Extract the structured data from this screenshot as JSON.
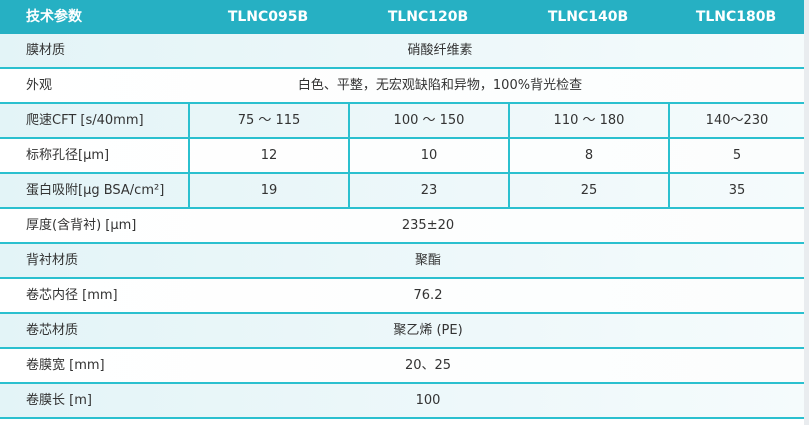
{
  "header": {
    "param": "技术参数",
    "models": [
      "TLNC095B",
      "TLNC120B",
      "TLNC140B",
      "TLNC180B"
    ]
  },
  "rows": [
    {
      "label": "膜材质",
      "value": "硝酸纤维素"
    },
    {
      "label": "外观",
      "value": "白色、平整，无宏观缺陷和异物，100%背光检查"
    },
    {
      "label": "爬速CFT [s/40mm]",
      "values": [
        "75 ～ 115",
        "100 ～ 150",
        "110 ～ 180",
        "140～230"
      ]
    },
    {
      "label": "标称孔径[μm]",
      "values": [
        "12",
        "10",
        "8",
        "5"
      ]
    },
    {
      "label": "蛋白吸附[μg BSA/cm²]",
      "values": [
        "19",
        "23",
        "25",
        "35"
      ]
    },
    {
      "label": "厚度(含背衬) [μm]",
      "value": "235±20"
    },
    {
      "label": "背衬材质",
      "value": "聚酯"
    },
    {
      "label": "卷芯内径 [mm]",
      "value": "76.2"
    },
    {
      "label": "卷芯材质",
      "value": "聚乙烯 (PE)"
    },
    {
      "label": "卷膜宽 [mm]",
      "value": "20、25"
    },
    {
      "label": "卷膜长 [m]",
      "value": "100"
    }
  ],
  "colors": {
    "header": "#26b0c3",
    "border": "#2bc0cf",
    "row_tint": "#e3f4f7"
  }
}
